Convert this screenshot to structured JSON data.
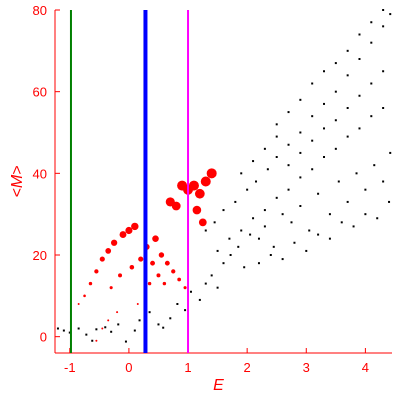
{
  "chart_data": {
    "type": "scatter",
    "xlabel": "E",
    "ylabel": "<M>",
    "xlim": [
      -1.25,
      4.45
    ],
    "ylim": [
      -4,
      80
    ],
    "x_ticks": [
      -1,
      0,
      1,
      2,
      3,
      4
    ],
    "x_tick_labels": [
      "-1",
      "0",
      "1",
      "2",
      "3",
      "4"
    ],
    "y_ticks": [
      0,
      20,
      40,
      60,
      80
    ],
    "y_tick_labels": [
      "0",
      "20",
      "40",
      "60",
      "80"
    ],
    "grid": false,
    "colors": {
      "axis": "#ff0000",
      "text": "#ff0000",
      "black_series": "#000000",
      "red_series": "#ff0000",
      "line_green": "#008000",
      "line_blue": "#0000ff",
      "line_magenta": "#ff00ff"
    },
    "vertical_lines": [
      {
        "x": -0.98,
        "color": "#008000"
      },
      {
        "x": 0.28,
        "color": "#0000ff"
      },
      {
        "x": 1.0,
        "color": "#ff00ff"
      }
    ],
    "series": [
      {
        "color": "#000000",
        "points": [
          [
            -1.2,
            2
          ],
          [
            -1.1,
            1.5
          ],
          [
            -1.0,
            1
          ],
          [
            -0.85,
            2
          ],
          [
            -0.72,
            0.5
          ],
          [
            -0.62,
            -1
          ],
          [
            -0.55,
            1.8
          ],
          [
            -0.4,
            2.3
          ],
          [
            -0.3,
            1.2
          ],
          [
            -0.18,
            3
          ],
          [
            -0.05,
            -1.2
          ],
          [
            0.1,
            1.5
          ],
          [
            0.18,
            4
          ],
          [
            0.35,
            6
          ],
          [
            0.5,
            3
          ],
          [
            0.58,
            2.2
          ],
          [
            0.7,
            4.5
          ],
          [
            0.82,
            8
          ],
          [
            0.95,
            6.5
          ],
          [
            1.05,
            11
          ],
          [
            1.2,
            9
          ],
          [
            1.3,
            13
          ],
          [
            1.4,
            15
          ],
          [
            1.5,
            12
          ],
          [
            1.6,
            18
          ],
          [
            1.72,
            20
          ],
          [
            1.85,
            22
          ],
          [
            1.95,
            17
          ],
          [
            2.05,
            25
          ],
          [
            2.2,
            24
          ],
          [
            2.3,
            27
          ],
          [
            2.45,
            22
          ],
          [
            2.6,
            30
          ],
          [
            2.75,
            28
          ],
          [
            2.9,
            32
          ],
          [
            3.05,
            26
          ],
          [
            3.2,
            35
          ],
          [
            3.4,
            30
          ],
          [
            3.55,
            38
          ],
          [
            3.7,
            33
          ],
          [
            3.85,
            40
          ],
          [
            4.0,
            36
          ],
          [
            4.15,
            42
          ],
          [
            4.3,
            38
          ],
          [
            4.42,
            45
          ],
          [
            1.3,
            26
          ],
          [
            1.45,
            28
          ],
          [
            1.6,
            31
          ],
          [
            1.8,
            33
          ],
          [
            2.0,
            36
          ],
          [
            2.15,
            38
          ],
          [
            2.35,
            41
          ],
          [
            2.5,
            44
          ],
          [
            2.7,
            47
          ],
          [
            2.9,
            50
          ],
          [
            3.1,
            54
          ],
          [
            3.3,
            57
          ],
          [
            3.5,
            60
          ],
          [
            3.7,
            64
          ],
          [
            3.9,
            68
          ],
          [
            4.1,
            72
          ],
          [
            4.3,
            76
          ],
          [
            4.42,
            79
          ],
          [
            1.5,
            21
          ],
          [
            1.7,
            24
          ],
          [
            1.9,
            26
          ],
          [
            2.1,
            29
          ],
          [
            2.3,
            31
          ],
          [
            2.5,
            34
          ],
          [
            2.7,
            36
          ],
          [
            2.9,
            39
          ],
          [
            3.1,
            41
          ],
          [
            3.3,
            44
          ],
          [
            3.5,
            46
          ],
          [
            3.7,
            49
          ],
          [
            3.9,
            51
          ],
          [
            4.1,
            54
          ],
          [
            4.3,
            56
          ],
          [
            2.2,
            18
          ],
          [
            2.4,
            20
          ],
          [
            2.6,
            19
          ],
          [
            2.8,
            23
          ],
          [
            3.0,
            21
          ],
          [
            3.2,
            25
          ],
          [
            3.4,
            24
          ],
          [
            3.6,
            28
          ],
          [
            3.8,
            27
          ],
          [
            4.0,
            30
          ],
          [
            4.2,
            29
          ],
          [
            4.4,
            33
          ],
          [
            2.5,
            52
          ],
          [
            2.7,
            55
          ],
          [
            2.9,
            58
          ],
          [
            3.1,
            62
          ],
          [
            3.3,
            65
          ],
          [
            3.5,
            67
          ],
          [
            3.7,
            70
          ],
          [
            3.9,
            74
          ],
          [
            4.1,
            77
          ],
          [
            4.3,
            80
          ],
          [
            1.9,
            40
          ],
          [
            2.1,
            43
          ],
          [
            2.3,
            46
          ],
          [
            2.5,
            49
          ],
          [
            2.7,
            42
          ],
          [
            2.9,
            45
          ],
          [
            3.1,
            48
          ],
          [
            3.3,
            51
          ],
          [
            3.5,
            53
          ],
          [
            3.7,
            56
          ],
          [
            3.9,
            59
          ],
          [
            4.1,
            62
          ],
          [
            4.3,
            65
          ]
        ]
      },
      {
        "color": "#ff0000",
        "points": [
          [
            -0.45,
            19
          ],
          [
            -0.35,
            21
          ],
          [
            -0.55,
            16
          ],
          [
            -0.25,
            23
          ],
          [
            -0.1,
            25
          ],
          [
            0.0,
            26
          ],
          [
            0.1,
            27
          ],
          [
            -0.65,
            13
          ],
          [
            -0.75,
            10
          ],
          [
            -0.85,
            8
          ],
          [
            0.3,
            22
          ],
          [
            0.45,
            24
          ],
          [
            0.55,
            20
          ],
          [
            0.65,
            18
          ],
          [
            0.75,
            16
          ],
          [
            0.85,
            14
          ],
          [
            0.95,
            12
          ],
          [
            0.4,
            18
          ],
          [
            0.5,
            15
          ],
          [
            0.6,
            13
          ],
          [
            0.7,
            33
          ],
          [
            0.8,
            32
          ],
          [
            0.9,
            37
          ],
          [
            1.0,
            36
          ],
          [
            1.1,
            37
          ],
          [
            1.2,
            35
          ],
          [
            1.3,
            38
          ],
          [
            1.4,
            40
          ],
          [
            1.15,
            31
          ],
          [
            1.25,
            28
          ],
          [
            -0.3,
            12
          ],
          [
            -0.15,
            15
          ],
          [
            0.05,
            17
          ],
          [
            0.2,
            19
          ],
          [
            0.35,
            13
          ],
          [
            -0.55,
            -1
          ],
          [
            -0.45,
            2
          ],
          [
            -0.35,
            4
          ],
          [
            -0.2,
            6
          ],
          [
            0.15,
            8
          ]
        ]
      }
    ]
  }
}
